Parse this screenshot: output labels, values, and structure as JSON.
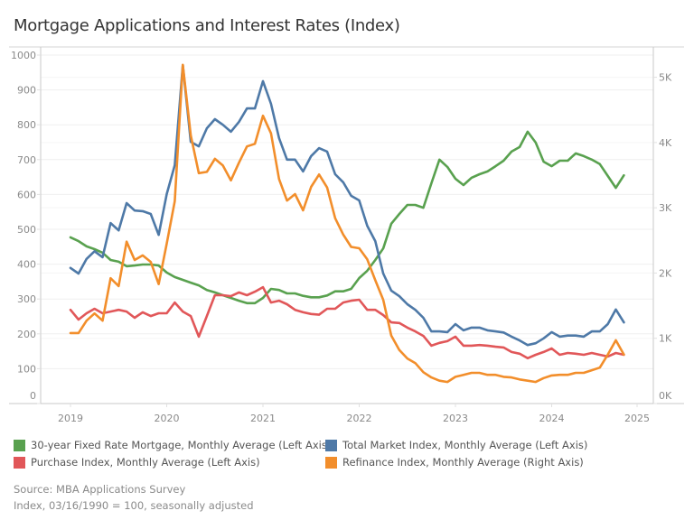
{
  "title": "Mortgage Applications and Interest Rates (Index)",
  "chart_data": {
    "type": "line",
    "title": "Mortgage Applications and Interest Rates (Index)",
    "xlabel": "",
    "ylabel_left": "",
    "ylabel_right": "",
    "x_start": "2019-01",
    "x_frequency": "monthly",
    "x_ticks": [
      "2019",
      "2020",
      "2021",
      "2022",
      "2023",
      "2024",
      "2025"
    ],
    "x_range": [
      2018.6,
      2025.1
    ],
    "y_left_ticks": [
      "0",
      "100",
      "200",
      "300",
      "400",
      "500",
      "600",
      "700",
      "800",
      "900",
      "1000"
    ],
    "y_left_range": [
      0,
      1000
    ],
    "y_right_ticks": [
      "0K",
      "1K",
      "2K",
      "3K",
      "4K",
      "5K"
    ],
    "y_right_tick_values": [
      0,
      1000,
      2000,
      3000,
      4000,
      5000
    ],
    "y_right_range": [
      0,
      5340
    ],
    "grid": true,
    "legend_position": "bottom",
    "series": [
      {
        "name": "30-year Fixed Rate Mortgage, Monthly Average (Left Axis)",
        "axis": "left",
        "color": "#59a14f",
        "values": [
          477,
          466,
          451,
          443,
          433,
          412,
          407,
          394,
          396,
          399,
          399,
          396,
          376,
          363,
          355,
          347,
          339,
          326,
          319,
          311,
          303,
          295,
          288,
          288,
          303,
          329,
          326,
          316,
          316,
          309,
          305,
          305,
          310,
          322,
          322,
          329,
          360,
          381,
          412,
          445,
          516,
          544,
          570,
          570,
          562,
          632,
          700,
          679,
          645,
          627,
          648,
          658,
          666,
          681,
          697,
          723,
          736,
          780,
          749,
          694,
          681,
          697,
          697,
          718,
          710,
          700,
          687,
          653,
          619,
          655
        ]
      },
      {
        "name": "Total Market Index, Monthly Average (Left Axis)",
        "axis": "left",
        "color": "#4e79a7",
        "values": [
          389,
          373,
          415,
          437,
          420,
          518,
          497,
          575,
          554,
          552,
          544,
          484,
          601,
          684,
          971,
          751,
          738,
          790,
          816,
          800,
          780,
          808,
          847,
          847,
          925,
          860,
          762,
          700,
          700,
          666,
          710,
          733,
          723,
          658,
          635,
          596,
          583,
          510,
          466,
          373,
          324,
          308,
          285,
          269,
          246,
          207,
          207,
          205,
          228,
          210,
          218,
          218,
          210,
          207,
          204,
          192,
          181,
          168,
          173,
          187,
          205,
          192,
          195,
          195,
          192,
          207,
          207,
          228,
          270,
          233
        ]
      },
      {
        "name": "Purchase Index, Monthly Average (Left Axis)",
        "axis": "left",
        "color": "#e15759",
        "values": [
          269,
          241,
          259,
          272,
          259,
          264,
          269,
          264,
          246,
          262,
          251,
          259,
          259,
          290,
          264,
          251,
          192,
          251,
          311,
          311,
          308,
          319,
          311,
          321,
          334,
          290,
          295,
          285,
          269,
          262,
          257,
          255,
          272,
          272,
          290,
          295,
          298,
          269,
          269,
          254,
          233,
          231,
          218,
          207,
          194,
          166,
          174,
          179,
          192,
          166,
          166,
          168,
          166,
          163,
          161,
          148,
          143,
          130,
          140,
          148,
          158,
          140,
          145,
          143,
          140,
          145,
          140,
          135,
          145,
          140
        ]
      },
      {
        "name": "Refinance Index, Monthly Average (Right Axis)",
        "axis": "right",
        "color": "#f28e2b",
        "values": [
          1080,
          1080,
          1270,
          1380,
          1270,
          1920,
          1800,
          2480,
          2200,
          2270,
          2170,
          1830,
          2450,
          3100,
          5190,
          4110,
          3530,
          3550,
          3750,
          3650,
          3420,
          3690,
          3940,
          3980,
          4410,
          4140,
          3440,
          3110,
          3210,
          2960,
          3320,
          3510,
          3310,
          2840,
          2590,
          2400,
          2380,
          2210,
          1890,
          1590,
          1040,
          820,
          690,
          620,
          480,
          400,
          350,
          330,
          410,
          440,
          470,
          470,
          440,
          440,
          410,
          400,
          370,
          350,
          330,
          390,
          430,
          440,
          440,
          470,
          470,
          510,
          550,
          750,
          970,
          750
        ]
      }
    ]
  },
  "legend": [
    {
      "label": "30-year Fixed Rate Mortgage, Monthly Average (Left Axis)",
      "color": "#59a14f"
    },
    {
      "label": "Total Market Index, Monthly Average (Left Axis)",
      "color": "#4e79a7"
    },
    {
      "label": "Purchase Index, Monthly Average (Left Axis)",
      "color": "#e15759"
    },
    {
      "label": "Refinance Index, Monthly Average (Right Axis)",
      "color": "#f28e2b"
    }
  ],
  "footer": {
    "source": "Source: MBA Applications Survey",
    "note": "Index, 03/16/1990 = 100, seasonally adjusted"
  }
}
